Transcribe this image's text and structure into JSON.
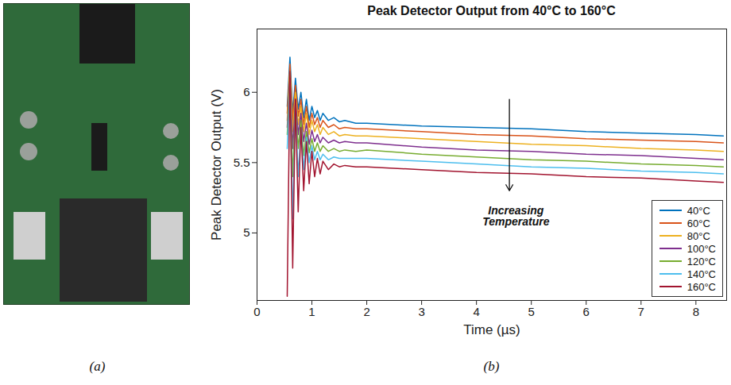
{
  "photo": {
    "caption": "(a)"
  },
  "chart_data": {
    "type": "line",
    "title": "Peak Detector Output from 40°C to 160°C",
    "caption": "(b)",
    "x_label": "Time (µs)",
    "y_label": "Peak Detector Output (V)",
    "x": [
      0.55,
      0.6,
      0.65,
      0.7,
      0.75,
      0.8,
      0.85,
      0.9,
      0.95,
      1.0,
      1.05,
      1.1,
      1.15,
      1.2,
      1.3,
      1.4,
      1.5,
      1.6,
      1.8,
      2,
      3,
      4,
      5,
      6,
      7,
      8,
      8.5
    ],
    "series": [
      {
        "name": "40°C",
        "color": "#0072BD",
        "values": [
          5.9,
          6.25,
          5.85,
          6.1,
          5.88,
          6.0,
          5.82,
          5.95,
          5.8,
          5.9,
          5.82,
          5.87,
          5.8,
          5.85,
          5.8,
          5.82,
          5.79,
          5.8,
          5.78,
          5.78,
          5.76,
          5.75,
          5.74,
          5.72,
          5.71,
          5.7,
          5.69
        ]
      },
      {
        "name": "60°C",
        "color": "#D95319",
        "values": [
          5.85,
          6.2,
          5.8,
          6.05,
          5.83,
          5.95,
          5.77,
          5.9,
          5.75,
          5.85,
          5.77,
          5.82,
          5.75,
          5.8,
          5.75,
          5.77,
          5.74,
          5.75,
          5.74,
          5.74,
          5.72,
          5.7,
          5.69,
          5.67,
          5.66,
          5.65,
          5.64
        ]
      },
      {
        "name": "80°C",
        "color": "#EDB120",
        "values": [
          5.8,
          6.15,
          5.72,
          6.0,
          5.77,
          5.9,
          5.72,
          5.85,
          5.7,
          5.8,
          5.72,
          5.77,
          5.7,
          5.75,
          5.7,
          5.72,
          5.69,
          5.7,
          5.69,
          5.69,
          5.67,
          5.65,
          5.63,
          5.62,
          5.6,
          5.59,
          5.58
        ]
      },
      {
        "name": "100°C",
        "color": "#7E2F8E",
        "values": [
          5.75,
          6.1,
          5.6,
          5.95,
          5.7,
          5.85,
          5.65,
          5.78,
          5.63,
          5.73,
          5.65,
          5.7,
          5.64,
          5.68,
          5.64,
          5.66,
          5.64,
          5.65,
          5.64,
          5.64,
          5.61,
          5.59,
          5.58,
          5.56,
          5.55,
          5.53,
          5.52
        ]
      },
      {
        "name": "120°C",
        "color": "#77AC30",
        "values": [
          5.7,
          6.05,
          5.4,
          5.9,
          5.6,
          5.8,
          5.55,
          5.72,
          5.57,
          5.67,
          5.58,
          5.64,
          5.58,
          5.62,
          5.58,
          5.6,
          5.58,
          5.59,
          5.58,
          5.59,
          5.56,
          5.54,
          5.52,
          5.51,
          5.49,
          5.48,
          5.47
        ]
      },
      {
        "name": "140°C",
        "color": "#4DBEEE",
        "values": [
          5.6,
          6.05,
          5.1,
          5.9,
          5.4,
          5.75,
          5.45,
          5.68,
          5.5,
          5.62,
          5.52,
          5.58,
          5.52,
          5.56,
          5.52,
          5.54,
          5.53,
          5.53,
          5.53,
          5.53,
          5.51,
          5.49,
          5.47,
          5.46,
          5.44,
          5.43,
          5.42
        ]
      },
      {
        "name": "160°C",
        "color": "#A2142F",
        "values": [
          4.55,
          6.15,
          4.75,
          5.95,
          5.15,
          5.75,
          5.3,
          5.65,
          5.35,
          5.58,
          5.4,
          5.53,
          5.42,
          5.51,
          5.45,
          5.49,
          5.47,
          5.48,
          5.47,
          5.47,
          5.45,
          5.43,
          5.42,
          5.4,
          5.39,
          5.37,
          5.36
        ]
      }
    ],
    "xlim": [
      0,
      8.56
    ],
    "ylim": [
      4.52,
      6.45
    ],
    "xticks": [
      0,
      1,
      2,
      3,
      4,
      5,
      6,
      7,
      8
    ],
    "yticks": [
      5,
      5.5,
      6
    ],
    "grid": false,
    "legend": "lower right",
    "annotations": [
      {
        "text": "Increasing Temperature",
        "x": 4.72,
        "y": 5.12,
        "arrow": {
          "x": 4.6,
          "y1": 5.95,
          "y2": 5.3
        }
      }
    ]
  }
}
